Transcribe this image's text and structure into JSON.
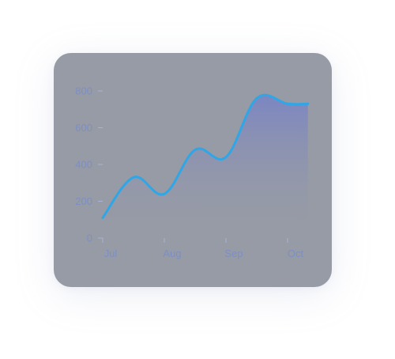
{
  "colors": {
    "card_background": "#979ba6",
    "line": "#2fa6e6",
    "area_top": "#7b86c2",
    "area_bottom": "#979ba6",
    "tick_label": "#7d8fc2",
    "tick_mark": "#a9b3d3"
  },
  "chart_data": {
    "type": "area",
    "title": "",
    "xlabel": "",
    "ylabel": "",
    "x_tick_labels": [
      "Jul",
      "Aug",
      "Sep",
      "Oct"
    ],
    "y_tick_labels": [
      "0",
      "200",
      "400",
      "600",
      "800"
    ],
    "y_ticks": [
      0,
      200,
      400,
      600,
      800
    ],
    "ylim": [
      0,
      800
    ],
    "grid": false,
    "legend": "none",
    "series": [
      {
        "x": [
          0,
          0.5,
          1,
          1.5,
          2,
          2.5,
          3,
          3.33
        ],
        "values": [
          110,
          330,
          240,
          480,
          440,
          760,
          730,
          730
        ]
      }
    ]
  }
}
